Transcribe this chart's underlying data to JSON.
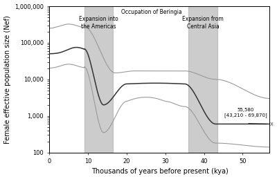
{
  "title": "",
  "xlabel": "Thousands of years before present (kya)",
  "ylabel": "Female effective population size (Nef)",
  "xlim": [
    0,
    57
  ],
  "ylim": [
    100,
    1000000
  ],
  "shaded_regions": [
    {
      "xmin": 9,
      "xmax": 16.5,
      "label": "Expansion into\nthe Americas"
    },
    {
      "xmin": 36,
      "xmax": 43.5,
      "label": "Expansion from\nCentral Asia"
    }
  ],
  "beringia_label": "Occupation of Beringia",
  "shade_color": "#aaaaaa",
  "shade_alpha": 0.6,
  "line_color_main": "#333333",
  "line_color_ci": "#999999",
  "bg_color": "#ffffff",
  "xticks": [
    0,
    10,
    20,
    30,
    40,
    50
  ],
  "yticks": [
    100,
    1000,
    10000,
    100000,
    1000000
  ],
  "ytick_labels": [
    "100",
    "1,000",
    "10,000",
    "100,000",
    "1,000,000"
  ]
}
